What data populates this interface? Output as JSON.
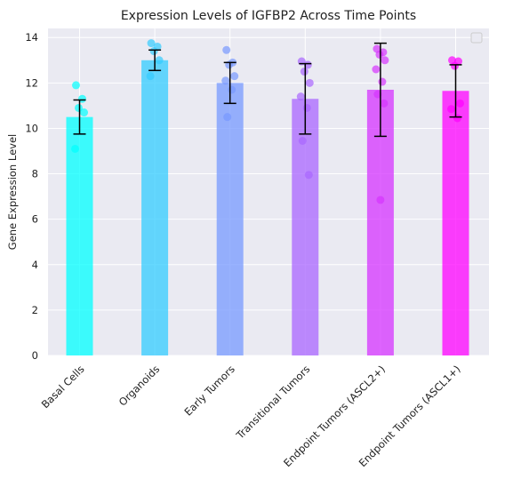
{
  "chart_data": {
    "type": "bar",
    "title": "Expression Levels of IGFBP2 Across Time Points",
    "xlabel": "",
    "ylabel": "Gene Expression Level",
    "ylim": [
      0,
      14.4
    ],
    "yticks": [
      0,
      2,
      4,
      6,
      8,
      10,
      12,
      14
    ],
    "grid": true,
    "legend": {
      "placement": "top-right",
      "entries": []
    },
    "categories": [
      "Basal Cells",
      "Organoids",
      "Early Tumors",
      "Transitional Tumors",
      "Endpoint Tumors (ASCL2+)",
      "Endpoint Tumors (ASCL1+)"
    ],
    "values": [
      10.5,
      13.0,
      12.0,
      11.3,
      11.7,
      11.65
    ],
    "errors": [
      0.75,
      0.45,
      0.9,
      1.55,
      2.05,
      1.15
    ],
    "colors": [
      "#00ffff",
      "#33ccff",
      "#7799ff",
      "#aa66ff",
      "#d633ff",
      "#ff00ff"
    ],
    "points": [
      [
        11.9,
        11.3,
        10.9,
        10.7,
        9.1
      ],
      [
        13.75,
        13.6,
        13.4,
        13.0,
        12.3
      ],
      [
        13.45,
        12.9,
        12.8,
        12.3,
        12.1,
        11.7,
        10.5
      ],
      [
        12.95,
        12.8,
        12.5,
        12.0,
        11.4,
        10.9,
        9.45,
        7.95
      ],
      [
        13.5,
        13.35,
        13.25,
        13.0,
        12.6,
        12.05,
        11.5,
        11.1,
        6.85
      ],
      [
        13.0,
        12.95,
        12.75,
        11.1,
        10.85,
        10.45
      ]
    ]
  }
}
